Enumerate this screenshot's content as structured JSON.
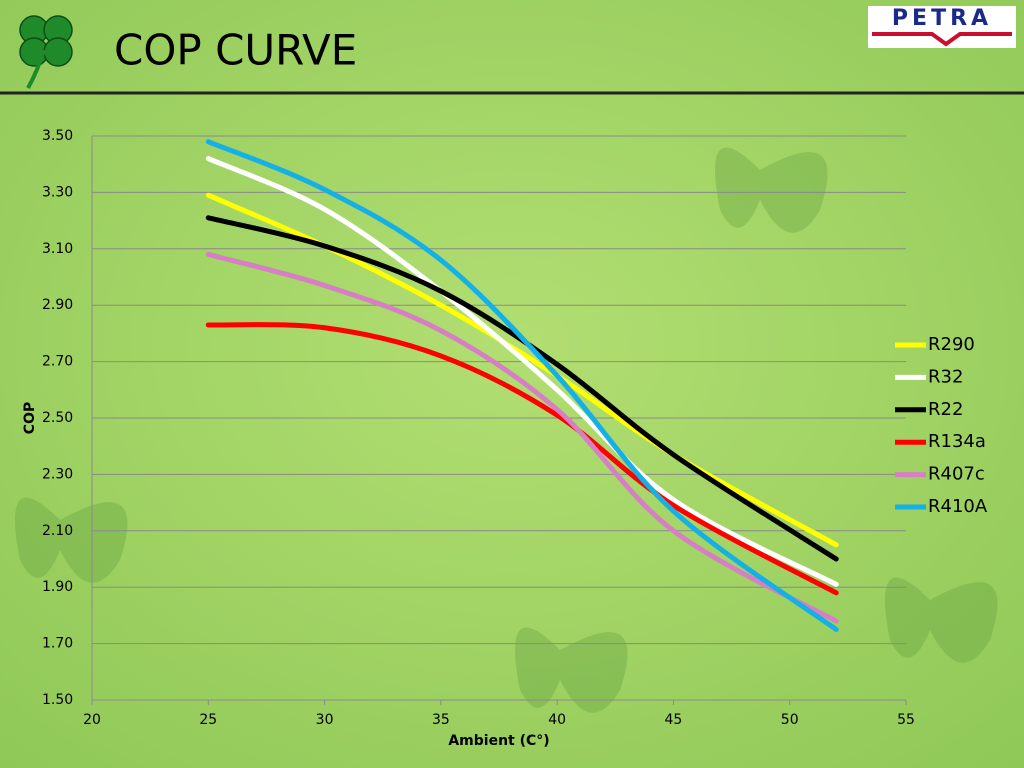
{
  "logo": "PETRA",
  "chart_data": {
    "type": "line",
    "title": "COP CURVE",
    "x_label": "Ambient (C°)",
    "y_label": "COP",
    "x": [
      25,
      30,
      35,
      40,
      45,
      52
    ],
    "series": [
      {
        "name": "R290",
        "color": "#ffff00",
        "values": [
          3.29,
          3.11,
          2.9,
          2.65,
          2.37,
          2.05
        ]
      },
      {
        "name": "R32",
        "color": "#ffffff",
        "values": [
          3.42,
          3.24,
          2.95,
          2.6,
          2.21,
          1.91
        ]
      },
      {
        "name": "R22",
        "color": "#000000",
        "values": [
          3.21,
          3.11,
          2.95,
          2.69,
          2.37,
          2.0
        ]
      },
      {
        "name": "R134a",
        "color": "#ff0000",
        "values": [
          2.83,
          2.82,
          2.72,
          2.51,
          2.19,
          1.88
        ]
      },
      {
        "name": "R407c",
        "color": "#d77fc4",
        "values": [
          3.08,
          2.97,
          2.81,
          2.53,
          2.1,
          1.78
        ]
      },
      {
        "name": "R410A",
        "color": "#14b0e6",
        "values": [
          3.48,
          3.31,
          3.06,
          2.65,
          2.17,
          1.75
        ]
      }
    ],
    "xlim": [
      20,
      55
    ],
    "xticks": [
      20,
      25,
      30,
      35,
      40,
      45,
      50,
      55
    ],
    "ylim": [
      1.5,
      3.5
    ],
    "yticks": [
      {
        "value": 1.5,
        "label": "1.50"
      },
      {
        "value": 1.7,
        "label": "1.70"
      },
      {
        "value": 1.9,
        "label": "1.90"
      },
      {
        "value": 2.1,
        "label": "2.10"
      },
      {
        "value": 2.3,
        "label": "2.30"
      },
      {
        "value": 2.5,
        "label": "2.50"
      },
      {
        "value": 2.7,
        "label": "2.70"
      },
      {
        "value": 2.9,
        "label": "2.90"
      },
      {
        "value": 3.1,
        "label": "3.10"
      },
      {
        "value": 3.3,
        "label": "3.30"
      },
      {
        "value": 3.5,
        "label": "3.50"
      }
    ],
    "grid": true,
    "legend": "right"
  }
}
